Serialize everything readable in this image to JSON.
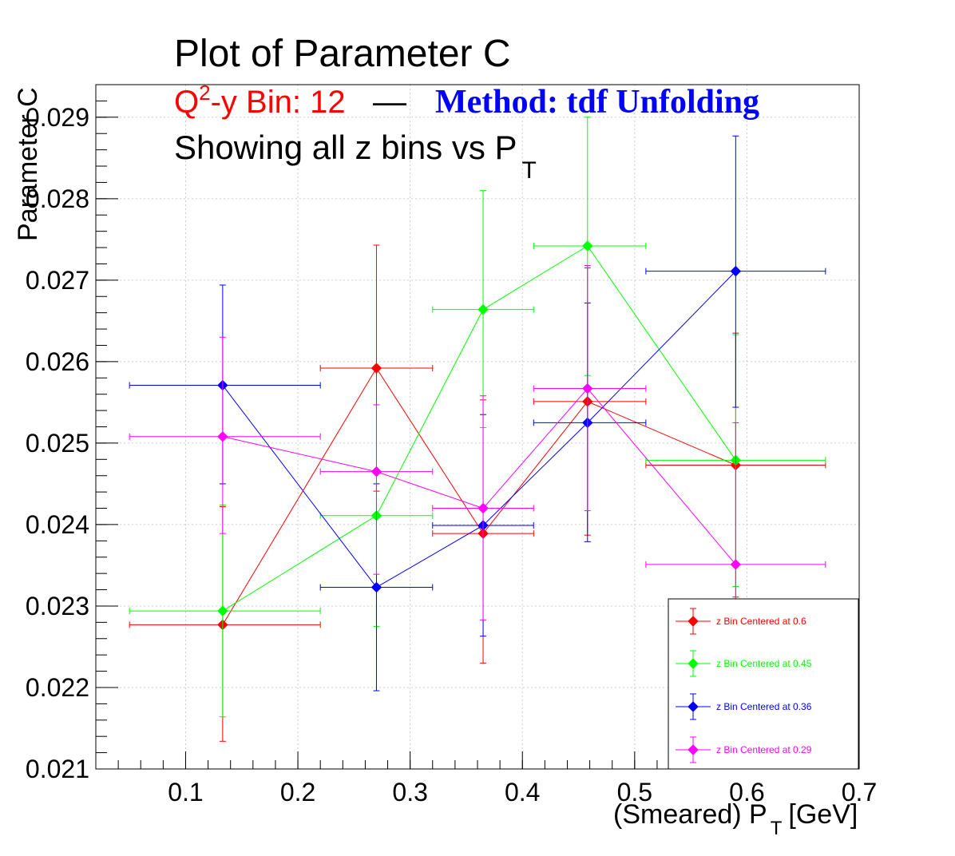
{
  "titles": {
    "main": "Plot of Parameter C",
    "bin_prefix": "Q",
    "bin_sup": "2",
    "bin_rest": "-y Bin: 12",
    "dash": "—",
    "method": "Method: tdf Unfolding",
    "showing": "Showing all z bins vs P",
    "showing_sub": "T"
  },
  "axes": {
    "x_title_main": "(Smeared) P",
    "x_title_sub": "T",
    "x_title_unit": "[GeV]",
    "y_title": "Parameter C"
  },
  "chart_data": {
    "type": "scatter",
    "title": "Plot of Parameter C",
    "xlabel": "(Smeared) P_T [GeV]",
    "ylabel": "Parameter C",
    "xlim": [
      0.02,
      0.7
    ],
    "ylim": [
      0.021,
      0.0294
    ],
    "x_ticks": [
      "0.1",
      "0.2",
      "0.3",
      "0.4",
      "0.5",
      "0.6",
      "0.7"
    ],
    "y_ticks": [
      "0.021",
      "0.022",
      "0.023",
      "0.024",
      "0.025",
      "0.026",
      "0.027",
      "0.028",
      "0.029"
    ],
    "grid": true,
    "legend_position": "bottom-right",
    "series": [
      {
        "name": "z Bin Centered at 0.6",
        "color": "#ff0000",
        "points": [
          {
            "x": 0.133,
            "y": 0.02277,
            "xlo": 0.05,
            "xhi": 0.22,
            "ylo": 0.02134,
            "yhi": 0.02422
          },
          {
            "x": 0.27,
            "y": 0.02592,
            "xlo": 0.22,
            "xhi": 0.32,
            "ylo": 0.02441,
            "yhi": 0.02743
          },
          {
            "x": 0.365,
            "y": 0.02389,
            "xlo": 0.32,
            "xhi": 0.41,
            "ylo": 0.0223,
            "yhi": 0.02553
          },
          {
            "x": 0.458,
            "y": 0.02551,
            "xlo": 0.41,
            "xhi": 0.51,
            "ylo": 0.02387,
            "yhi": 0.02715
          },
          {
            "x": 0.59,
            "y": 0.02473,
            "xlo": 0.51,
            "xhi": 0.67,
            "ylo": 0.02311,
            "yhi": 0.02635
          }
        ]
      },
      {
        "name": "z Bin Centered at 0.45",
        "color": "#00ff00",
        "points": [
          {
            "x": 0.133,
            "y": 0.02294,
            "xlo": 0.05,
            "xhi": 0.22,
            "ylo": 0.02164,
            "yhi": 0.02424
          },
          {
            "x": 0.27,
            "y": 0.02411,
            "xlo": 0.22,
            "xhi": 0.32,
            "ylo": 0.02275,
            "yhi": 0.02547
          },
          {
            "x": 0.365,
            "y": 0.02664,
            "xlo": 0.32,
            "xhi": 0.41,
            "ylo": 0.02519,
            "yhi": 0.0281
          },
          {
            "x": 0.458,
            "y": 0.02742,
            "xlo": 0.41,
            "xhi": 0.51,
            "ylo": 0.02583,
            "yhi": 0.029
          },
          {
            "x": 0.59,
            "y": 0.02479,
            "xlo": 0.51,
            "xhi": 0.67,
            "ylo": 0.02324,
            "yhi": 0.02633
          }
        ]
      },
      {
        "name": "z Bin Centered at 0.36",
        "color": "#0000ff",
        "points": [
          {
            "x": 0.133,
            "y": 0.02571,
            "xlo": 0.05,
            "xhi": 0.22,
            "ylo": 0.0245,
            "yhi": 0.02694
          },
          {
            "x": 0.27,
            "y": 0.02323,
            "xlo": 0.22,
            "xhi": 0.32,
            "ylo": 0.02196,
            "yhi": 0.0245
          },
          {
            "x": 0.365,
            "y": 0.02399,
            "xlo": 0.32,
            "xhi": 0.41,
            "ylo": 0.02263,
            "yhi": 0.02535
          },
          {
            "x": 0.458,
            "y": 0.02525,
            "xlo": 0.41,
            "xhi": 0.51,
            "ylo": 0.02379,
            "yhi": 0.02672
          },
          {
            "x": 0.59,
            "y": 0.02711,
            "xlo": 0.51,
            "xhi": 0.67,
            "ylo": 0.02544,
            "yhi": 0.02877
          }
        ]
      },
      {
        "name": "z Bin Centered at 0.29",
        "color": "#ff00ff",
        "points": [
          {
            "x": 0.133,
            "y": 0.02508,
            "xlo": 0.05,
            "xhi": 0.22,
            "ylo": 0.02389,
            "yhi": 0.0263
          },
          {
            "x": 0.27,
            "y": 0.02465,
            "xlo": 0.22,
            "xhi": 0.32,
            "ylo": 0.02339,
            "yhi": 0.02547
          },
          {
            "x": 0.365,
            "y": 0.0242,
            "xlo": 0.32,
            "xhi": 0.41,
            "ylo": 0.02283,
            "yhi": 0.02558
          },
          {
            "x": 0.458,
            "y": 0.02567,
            "xlo": 0.41,
            "xhi": 0.51,
            "ylo": 0.02417,
            "yhi": 0.02718
          },
          {
            "x": 0.59,
            "y": 0.02351,
            "xlo": 0.51,
            "xhi": 0.67,
            "ylo": 0.0221,
            "yhi": 0.02525
          }
        ]
      }
    ]
  }
}
